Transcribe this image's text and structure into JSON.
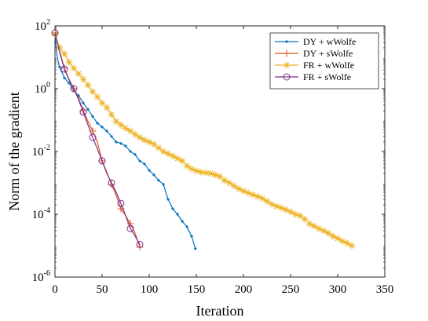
{
  "chart_data": {
    "type": "line",
    "title": "",
    "xlabel": "Iteration",
    "ylabel": "Norm of the gradient",
    "xlim": [
      0,
      350
    ],
    "ylim": [
      1e-06,
      100
    ],
    "yscale": "log",
    "grid": false,
    "legend_position": "top-right",
    "x_ticks": [
      {
        "value": 0,
        "label": "0"
      },
      {
        "value": 50,
        "label": "50"
      },
      {
        "value": 100,
        "label": "100"
      },
      {
        "value": 150,
        "label": "150"
      },
      {
        "value": 200,
        "label": "200"
      },
      {
        "value": 250,
        "label": "250"
      },
      {
        "value": 300,
        "label": "300"
      },
      {
        "value": 350,
        "label": "350"
      }
    ],
    "y_ticks": [
      {
        "value": 1e-06,
        "base": "10",
        "exp": "-6"
      },
      {
        "value": 0.0001,
        "base": "10",
        "exp": "-4"
      },
      {
        "value": 0.01,
        "base": "10",
        "exp": "-2"
      },
      {
        "value": 1,
        "base": "10",
        "exp": "0"
      },
      {
        "value": 100,
        "base": "10",
        "exp": "2"
      }
    ],
    "series": [
      {
        "name": "DY + wWolfe",
        "color": "#0072BD",
        "marker": "dot",
        "x": [
          0,
          2,
          4,
          6,
          8,
          10,
          15,
          20,
          25,
          30,
          35,
          40,
          45,
          50,
          55,
          60,
          65,
          70,
          75,
          80,
          85,
          90,
          95,
          100,
          105,
          110,
          115,
          120,
          125,
          130,
          135,
          140,
          145,
          149
        ],
        "y": [
          55,
          12,
          6,
          4,
          3,
          2.2,
          1.5,
          0.9,
          0.6,
          0.35,
          0.22,
          0.13,
          0.08,
          0.06,
          0.045,
          0.03,
          0.02,
          0.018,
          0.015,
          0.01,
          0.008,
          0.005,
          0.004,
          0.0025,
          0.0018,
          0.0012,
          0.0009,
          0.0003,
          0.00015,
          0.0001,
          6e-05,
          4e-05,
          2e-05,
          8e-06
        ]
      },
      {
        "name": "DY + sWolfe",
        "color": "#D95319",
        "marker": "plus",
        "x": [
          0,
          5,
          10,
          15,
          20,
          25,
          30,
          35,
          40,
          45,
          50,
          55,
          60,
          65,
          70,
          75,
          80,
          85,
          90
        ],
        "y": [
          60,
          15,
          4.5,
          2,
          1,
          0.5,
          0.2,
          0.09,
          0.045,
          0.02,
          0.005,
          0.0022,
          0.0009,
          0.0004,
          0.00015,
          9e-05,
          5e-05,
          2.5e-05,
          9e-06
        ]
      },
      {
        "name": "FR + wWolfe",
        "color": "#EDB120",
        "marker": "asterisk",
        "x": [
          0,
          5,
          10,
          15,
          20,
          25,
          30,
          35,
          40,
          45,
          50,
          55,
          60,
          65,
          70,
          75,
          80,
          85,
          90,
          95,
          100,
          105,
          110,
          115,
          120,
          125,
          130,
          135,
          140,
          145,
          150,
          155,
          160,
          165,
          170,
          175,
          180,
          185,
          190,
          195,
          200,
          205,
          210,
          215,
          220,
          225,
          230,
          235,
          240,
          245,
          250,
          255,
          260,
          265,
          270,
          275,
          280,
          285,
          290,
          295,
          300,
          305,
          310,
          315
        ],
        "y": [
          55,
          20,
          13,
          7,
          4.5,
          3,
          2,
          1.3,
          0.8,
          0.55,
          0.35,
          0.25,
          0.15,
          0.09,
          0.07,
          0.055,
          0.045,
          0.035,
          0.028,
          0.023,
          0.02,
          0.017,
          0.013,
          0.01,
          0.0085,
          0.0072,
          0.006,
          0.005,
          0.0035,
          0.0028,
          0.0024,
          0.0022,
          0.0021,
          0.002,
          0.0018,
          0.0016,
          0.0012,
          0.001,
          0.0008,
          0.00065,
          0.00055,
          0.00048,
          0.00042,
          0.00037,
          0.00032,
          0.00026,
          0.00021,
          0.00018,
          0.00016,
          0.00014,
          0.00012,
          0.0001,
          9e-05,
          7e-05,
          5e-05,
          4.2e-05,
          3.5e-05,
          3e-05,
          2.5e-05,
          2e-05,
          1.7e-05,
          1.4e-05,
          1.2e-05,
          1e-05
        ]
      },
      {
        "name": "FR + sWolfe",
        "color": "#7E2F8E",
        "marker": "circle",
        "x": [
          0,
          5,
          10,
          15,
          20,
          25,
          30,
          35,
          40,
          45,
          50,
          55,
          60,
          65,
          70,
          75,
          80,
          85,
          90
        ],
        "y": [
          60,
          14,
          4.2,
          1.9,
          1,
          0.45,
          0.18,
          0.07,
          0.028,
          0.012,
          0.005,
          0.002,
          0.001,
          0.0005,
          0.00022,
          9e-05,
          3.5e-05,
          2e-05,
          1.1e-05
        ]
      }
    ],
    "markers": {
      "DY + wWolfe": {
        "x": [
          0,
          5,
          10,
          15,
          20,
          25,
          30,
          35,
          40,
          45,
          50,
          55,
          60,
          65,
          70,
          75,
          80,
          85,
          90,
          95,
          100,
          105,
          110,
          115,
          120,
          125,
          130,
          135,
          140,
          145,
          149
        ]
      },
      "DY + sWolfe": {
        "x": [
          0,
          10,
          20,
          30,
          40,
          50,
          60,
          70,
          80,
          90
        ]
      },
      "FR + wWolfe": {
        "x": [
          0,
          5,
          10,
          15,
          20,
          25,
          30,
          35,
          40,
          45,
          50,
          55,
          60,
          65,
          70,
          75,
          80,
          85,
          90,
          95,
          100,
          105,
          110,
          115,
          120,
          125,
          130,
          135,
          140,
          145,
          150,
          155,
          160,
          165,
          170,
          175,
          180,
          185,
          190,
          195,
          200,
          205,
          210,
          215,
          220,
          225,
          230,
          235,
          240,
          245,
          250,
          255,
          260,
          265,
          270,
          275,
          280,
          285,
          290,
          295,
          300,
          305,
          310,
          315
        ]
      },
      "FR + sWolfe": {
        "x": [
          0,
          10,
          20,
          30,
          40,
          50,
          60,
          70,
          80,
          90
        ]
      }
    }
  }
}
